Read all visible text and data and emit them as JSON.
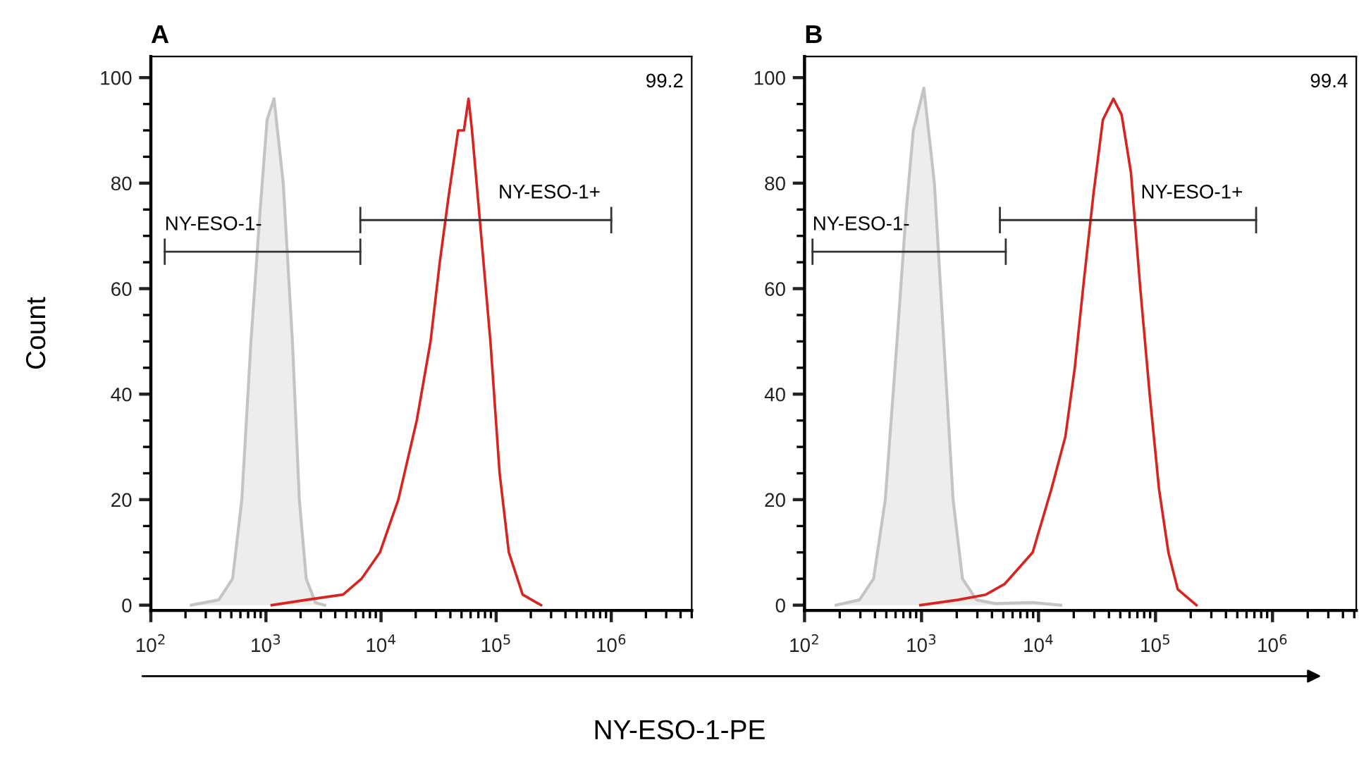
{
  "chart_data": [
    {
      "type": "line",
      "title": "A",
      "ylabel": "Count",
      "xlabel": "NY-ESO-1-PE",
      "log": "x",
      "grid": false,
      "legend": false,
      "marker": "none",
      "xlim": [
        100,
        5000000
      ],
      "xticks": [
        {
          "value": 100,
          "label": "10$^{2}$"
        },
        {
          "value": 1000,
          "label": "10$^{3}$"
        },
        {
          "value": 10000,
          "label": "10$^{4}$"
        },
        {
          "value": 100000,
          "label": "10$^{5}$"
        },
        {
          "value": 1000000,
          "label": "10$^{6}$"
        }
      ],
      "ylim": [
        -1,
        104
      ],
      "yticks": [
        0,
        20,
        40,
        60,
        80,
        100
      ],
      "series": [
        {
          "type": "area",
          "color": "#c4c4c4",
          "x": [
            224,
            389,
            513,
            617,
            741,
            891,
            1023,
            1175,
            1413,
            1698,
            1950,
            2239,
            2692,
            3236
          ],
          "values": [
            0,
            1,
            5,
            20,
            50,
            75,
            92,
            96,
            80,
            50,
            20,
            5,
            0.5,
            0
          ]
        },
        {
          "type": "line",
          "color": "#d8231e",
          "x": [
            1122,
            2239,
            3236,
            4677,
            6761,
            9772,
            14125,
            20417,
            26915,
            32359,
            38905,
            46774,
            52481,
            57544,
            61660,
            74131,
            89125,
            107152,
            128825,
            169824,
            245471
          ],
          "values": [
            0,
            1,
            1.5,
            2,
            5,
            10,
            20,
            35,
            50,
            65,
            78,
            90,
            90,
            96,
            90,
            70,
            50,
            25,
            10,
            2,
            0
          ]
        },
        {
          "color": "#333333",
          "x": [
            132,
            6607
          ],
          "values": [
            67,
            67
          ],
          "errors": [
            2.5,
            2.5
          ]
        },
        {
          "color": "#333333",
          "x": [
            6607,
            1000000
          ],
          "values": [
            73,
            73
          ],
          "errors": [
            2.5,
            2.5
          ]
        }
      ],
      "annotations": [
        "NY-ESO-1-",
        "NY-ESO-1+",
        "99.2"
      ]
    },
    {
      "type": "line",
      "title": "B",
      "log": "x",
      "grid": false,
      "legend": false,
      "marker": "none",
      "xlim": [
        100,
        5200000
      ],
      "xticks": [
        {
          "value": 100,
          "label": "10$^{2}$"
        },
        {
          "value": 1000,
          "label": "10$^{3}$"
        },
        {
          "value": 10000,
          "label": "10$^{4}$"
        },
        {
          "value": 100000,
          "label": "10$^{5}$"
        },
        {
          "value": 1000000,
          "label": "10$^{6}$"
        }
      ],
      "ylim": [
        -1,
        104
      ],
      "yticks": [
        0,
        20,
        40,
        60,
        80,
        100
      ],
      "series": [
        {
          "type": "area",
          "color": "#c4c4c4",
          "x": [
            186,
            295,
            389,
            490,
            617,
            741,
            851,
            1047,
            1288,
            1549,
            1862,
            2239,
            2951,
            4266,
            8913,
            15488
          ],
          "values": [
            0,
            1,
            5,
            20,
            50,
            75,
            90,
            98,
            80,
            50,
            20,
            5,
            1,
            0.3,
            0.5,
            0
          ]
        },
        {
          "type": "line",
          "color": "#d8231e",
          "x": [
            977,
            2042,
            3548,
            5129,
            7413,
            8913,
            12882,
            16982,
            20417,
            24547,
            29512,
            35481,
            43652,
            51286,
            61660,
            74131,
            89125,
            107152,
            128825,
            154882,
            223872
          ],
          "values": [
            0,
            1,
            2,
            4,
            8,
            10,
            22,
            32,
            45,
            62,
            78,
            92,
            96,
            93,
            82,
            60,
            40,
            22,
            10,
            3,
            0
          ]
        },
        {
          "color": "#333333",
          "x": [
            117,
            5248
          ],
          "values": [
            67,
            67
          ],
          "errors": [
            2.5,
            2.5
          ]
        },
        {
          "color": "#333333",
          "x": [
            4677,
            724436
          ],
          "values": [
            73,
            73
          ],
          "errors": [
            2.5,
            2.5
          ]
        }
      ],
      "annotations": [
        "NY-ESO-1-",
        "NY-ESO-1+",
        "99.4"
      ]
    }
  ]
}
